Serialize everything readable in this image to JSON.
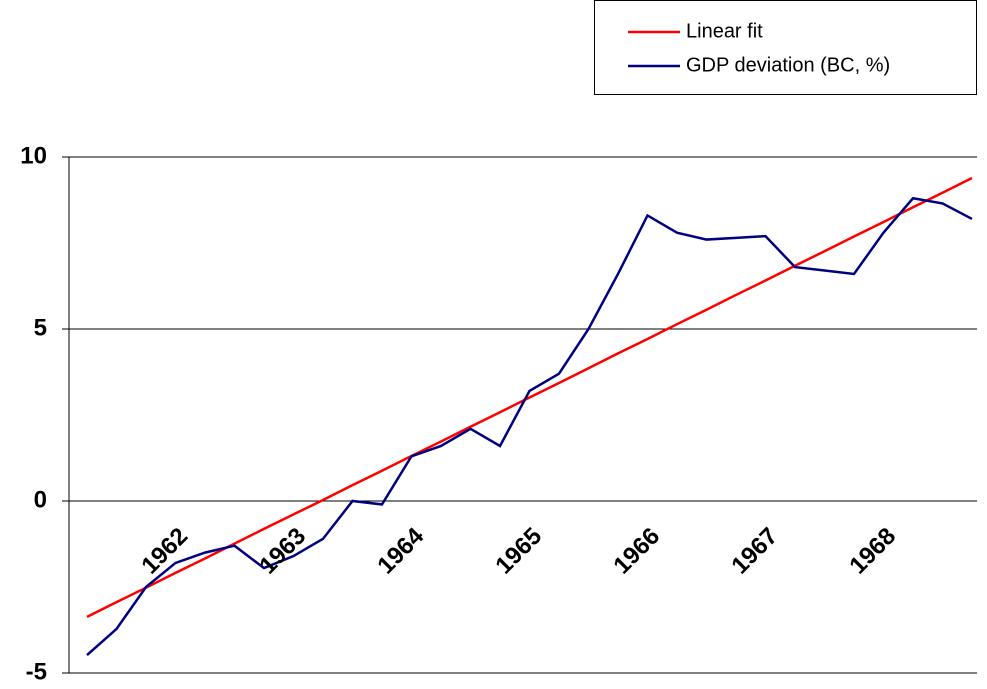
{
  "chart_data": {
    "type": "line",
    "categories": [
      null,
      null,
      null,
      "1962",
      null,
      null,
      null,
      "1963",
      null,
      null,
      null,
      "1964",
      null,
      null,
      null,
      "1965",
      null,
      null,
      null,
      "1966",
      null,
      null,
      null,
      "1967",
      null,
      null,
      null,
      "1968",
      null,
      null,
      null
    ],
    "series": [
      {
        "name": "Linear fit",
        "color": "#ff0000",
        "values": [
          -3.37,
          -2.94,
          -2.52,
          -2.09,
          -1.67,
          -1.24,
          -0.81,
          -0.39,
          0.03,
          0.46,
          0.88,
          1.31,
          1.73,
          2.16,
          2.58,
          3.01,
          3.43,
          3.86,
          4.29,
          4.71,
          5.14,
          5.56,
          5.99,
          6.41,
          6.84,
          7.26,
          7.69,
          8.11,
          8.54,
          8.96,
          9.39
        ]
      },
      {
        "name": "GDP deviation (BC, %)",
        "color": "#000080",
        "values": [
          -4.48,
          -3.72,
          -2.5,
          -1.8,
          -1.5,
          -1.3,
          -1.95,
          -1.6,
          -1.1,
          0.0,
          -0.1,
          1.3,
          1.6,
          2.1,
          1.6,
          3.2,
          3.7,
          5.0,
          6.6,
          8.3,
          7.8,
          7.6,
          7.65,
          7.7,
          6.8,
          6.7,
          6.6,
          7.8,
          8.8,
          8.65,
          8.2
        ]
      }
    ],
    "ylim": [
      -5,
      10
    ],
    "yticks": [
      -5,
      0,
      5,
      10
    ],
    "grid": true,
    "legend": "top-right"
  }
}
